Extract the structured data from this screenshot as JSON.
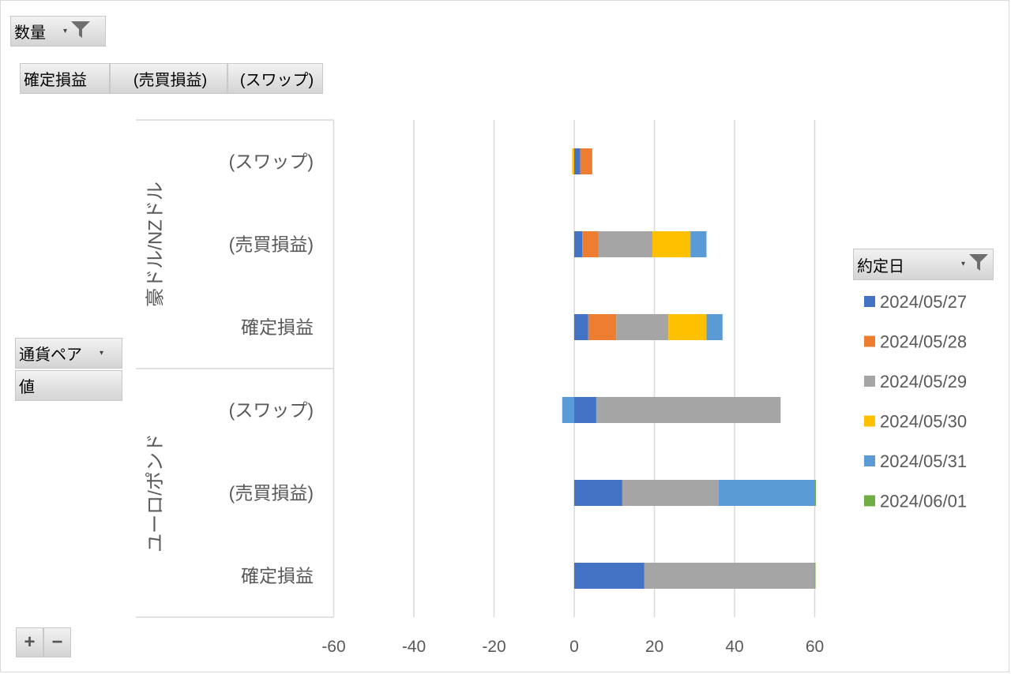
{
  "filters": {
    "value_field": "数量",
    "col_fields": [
      "確定損益",
      "(売買損益)",
      "(スワップ)"
    ],
    "row_field": "通貨ペア",
    "values_label": "値",
    "legend_field": "約定日",
    "zoom_in": "+",
    "zoom_out": "−"
  },
  "chart_data": {
    "type": "bar",
    "orientation": "horizontal",
    "stacked": true,
    "xlim": [
      -60,
      60
    ],
    "xticks": [
      "-60",
      "-40",
      "-20",
      "0",
      "20",
      "40",
      "60"
    ],
    "grid": true,
    "groups": [
      {
        "name": "豪ドル/NZドル",
        "categories": [
          "(スワップ)",
          "(売買損益)",
          "確定損益"
        ]
      },
      {
        "name": "ユーロ/ポンド",
        "categories": [
          "(スワップ)",
          "(売買損益)",
          "確定損益"
        ]
      }
    ],
    "series": [
      {
        "name": "2024/05/27",
        "color": "#4472C4",
        "values": [
          1.5,
          2,
          3.5,
          5.5,
          12,
          17.5
        ]
      },
      {
        "name": "2024/05/28",
        "color": "#ED7D31",
        "values": [
          3,
          4,
          7,
          0,
          0,
          0
        ]
      },
      {
        "name": "2024/05/29",
        "color": "#A5A5A5",
        "values": [
          0,
          13.5,
          13,
          46,
          24,
          42.5
        ]
      },
      {
        "name": "2024/05/30",
        "color": "#FFC000",
        "values": [
          -0.5,
          9.5,
          9.5,
          0,
          0,
          0
        ]
      },
      {
        "name": "2024/05/31",
        "color": "#5B9BD5",
        "values": [
          0,
          4,
          4,
          -3,
          24,
          0
        ]
      },
      {
        "name": "2024/06/01",
        "color": "#70AD47",
        "values": [
          0,
          0,
          0,
          0,
          0.3,
          0.2
        ]
      }
    ]
  }
}
